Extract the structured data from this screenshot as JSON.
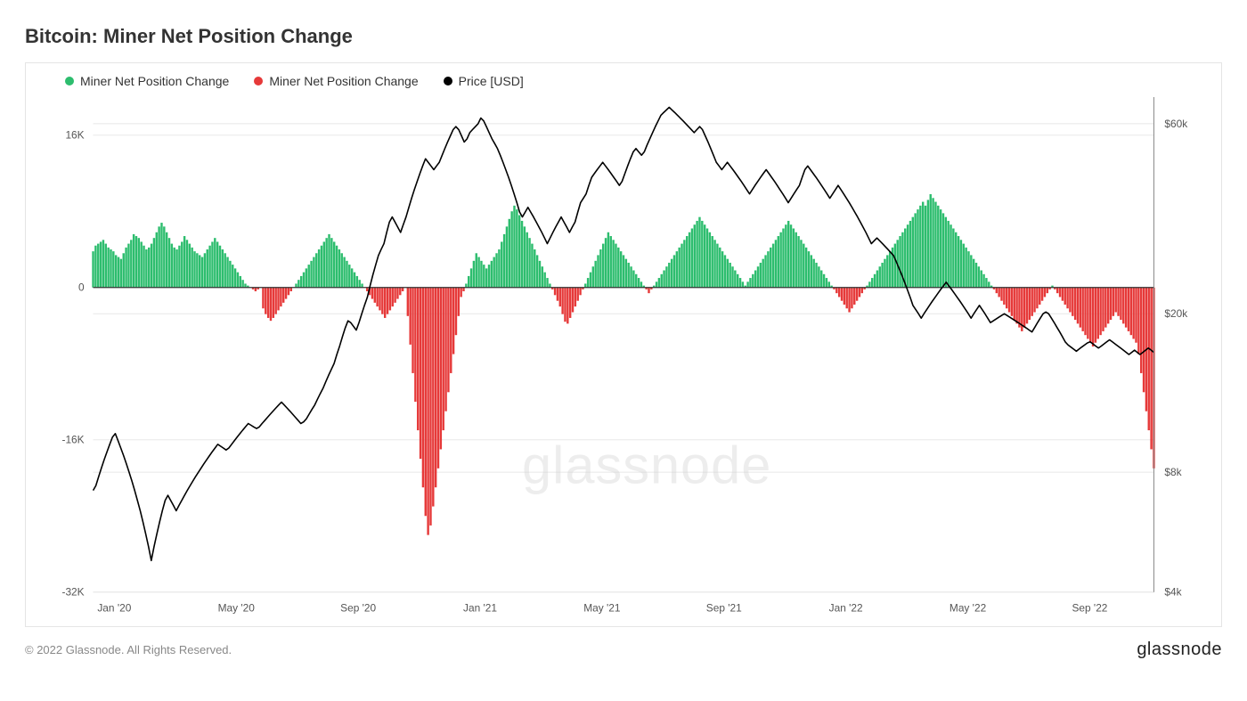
{
  "title": "Bitcoin: Miner Net Position Change",
  "copyright": "© 2022 Glassnode. All Rights Reserved.",
  "brand": "glassnode",
  "watermark": "glassnode",
  "chart": {
    "type": "combo-bar-line",
    "background_color": "#ffffff",
    "frame_border_color": "#e5e5e5",
    "plot_border_color": "#888888",
    "grid_color": "#e8e8e8",
    "zero_line_color": "#333333",
    "font_family": "sans-serif",
    "legend": [
      {
        "label": "Miner Net Position Change",
        "color": "#2dbd6e",
        "type": "dot"
      },
      {
        "label": "Miner Net Position Change",
        "color": "#e63939",
        "type": "dot"
      },
      {
        "label": "Price [USD]",
        "color": "#000000",
        "type": "dot"
      }
    ],
    "left_axis": {
      "label_color": "#555",
      "label_fontsize": 12,
      "min": -32000,
      "max": 20000,
      "ticks": [
        {
          "value": 16000,
          "label": "16K"
        },
        {
          "value": 0,
          "label": "0"
        },
        {
          "value": -16000,
          "label": "-16K"
        },
        {
          "value": -32000,
          "label": "-32K"
        }
      ]
    },
    "right_axis": {
      "label_color": "#555",
      "label_fontsize": 12,
      "scale": "log",
      "min": 4000,
      "max": 70000,
      "ticks": [
        {
          "value": 60000,
          "label": "$60k"
        },
        {
          "value": 20000,
          "label": "$20k"
        },
        {
          "value": 8000,
          "label": "$8k"
        },
        {
          "value": 4000,
          "label": "$4k"
        }
      ]
    },
    "x_axis": {
      "label_color": "#555",
      "label_fontsize": 12,
      "ticks": [
        "Jan '20",
        "May '20",
        "Sep '20",
        "Jan '21",
        "May '21",
        "Sep '21",
        "Jan '22",
        "May '22",
        "Sep '22"
      ]
    },
    "bars": {
      "positive_color": "#2dbd6e",
      "negative_color": "#e63939",
      "width": 0.85,
      "values": [
        3800,
        4400,
        4600,
        4800,
        5000,
        4600,
        4200,
        4000,
        3800,
        3400,
        3200,
        3000,
        3600,
        4200,
        4600,
        5000,
        5600,
        5400,
        5200,
        4800,
        4400,
        4000,
        4200,
        4600,
        5200,
        5800,
        6400,
        6800,
        6400,
        5800,
        5200,
        4600,
        4200,
        4000,
        4400,
        4800,
        5400,
        5000,
        4600,
        4200,
        3800,
        3600,
        3400,
        3200,
        3600,
        4000,
        4400,
        4800,
        5200,
        4800,
        4400,
        4000,
        3600,
        3200,
        2800,
        2400,
        2000,
        1600,
        1200,
        800,
        400,
        200,
        0,
        -200,
        -400,
        -200,
        0,
        -2200,
        -2800,
        -3200,
        -3500,
        -3200,
        -2800,
        -2400,
        -2000,
        -1600,
        -1200,
        -800,
        -400,
        0,
        400,
        800,
        1200,
        1600,
        2000,
        2400,
        2800,
        3200,
        3600,
        4000,
        4400,
        4800,
        5200,
        5600,
        5200,
        4800,
        4400,
        4000,
        3600,
        3200,
        2800,
        2400,
        2000,
        1600,
        1200,
        800,
        400,
        0,
        -400,
        -800,
        -1200,
        -1600,
        -2000,
        -2400,
        -2800,
        -3200,
        -2800,
        -2400,
        -2000,
        -1600,
        -1200,
        -800,
        -400,
        0,
        -3000,
        -6000,
        -9000,
        -12000,
        -15000,
        -18000,
        -21000,
        -24000,
        -26000,
        -25000,
        -23000,
        -21000,
        -19000,
        -17000,
        -15000,
        -13000,
        -11000,
        -9000,
        -7000,
        -5000,
        -3000,
        -1000,
        -400,
        400,
        1200,
        2000,
        2800,
        3600,
        3200,
        2800,
        2400,
        2000,
        2400,
        2800,
        3200,
        3600,
        4000,
        4800,
        5600,
        6400,
        7200,
        8000,
        8600,
        8200,
        7600,
        7000,
        6400,
        5800,
        5200,
        4600,
        4000,
        3400,
        2800,
        2200,
        1600,
        1000,
        400,
        -200,
        -800,
        -1400,
        -2000,
        -2800,
        -3600,
        -3800,
        -3200,
        -2600,
        -2000,
        -1400,
        -800,
        -200,
        400,
        1000,
        1600,
        2200,
        2800,
        3400,
        4000,
        4600,
        5200,
        5800,
        5400,
        5000,
        4600,
        4200,
        3800,
        3400,
        3000,
        2600,
        2200,
        1800,
        1400,
        1000,
        600,
        200,
        -200,
        -600,
        -200,
        200,
        600,
        1000,
        1400,
        1800,
        2200,
        2600,
        3000,
        3400,
        3800,
        4200,
        4600,
        5000,
        5400,
        5800,
        6200,
        6600,
        7000,
        7400,
        7000,
        6600,
        6200,
        5800,
        5400,
        5000,
        4600,
        4200,
        3800,
        3400,
        3000,
        2600,
        2200,
        1800,
        1400,
        1000,
        600,
        200,
        600,
        1000,
        1400,
        1800,
        2200,
        2600,
        3000,
        3400,
        3800,
        4200,
        4600,
        5000,
        5400,
        5800,
        6200,
        6600,
        7000,
        6600,
        6200,
        5800,
        5400,
        5000,
        4600,
        4200,
        3800,
        3400,
        3000,
        2600,
        2200,
        1800,
        1400,
        1000,
        600,
        200,
        -200,
        -600,
        -1000,
        -1400,
        -1800,
        -2200,
        -2600,
        -2200,
        -1800,
        -1400,
        -1000,
        -600,
        -200,
        200,
        600,
        1000,
        1400,
        1800,
        2200,
        2600,
        3000,
        3400,
        3800,
        4200,
        4600,
        5000,
        5400,
        5800,
        6200,
        6600,
        7000,
        7400,
        7800,
        8200,
        8600,
        9000,
        8600,
        9200,
        9800,
        9400,
        9000,
        8600,
        8200,
        7800,
        7400,
        7000,
        6600,
        6200,
        5800,
        5400,
        5000,
        4600,
        4200,
        3800,
        3400,
        3000,
        2600,
        2200,
        1800,
        1400,
        1000,
        600,
        200,
        -200,
        -600,
        -1000,
        -1400,
        -1800,
        -2200,
        -2600,
        -3000,
        -3400,
        -3800,
        -4200,
        -4600,
        -4200,
        -3800,
        -3400,
        -3000,
        -2600,
        -2200,
        -1800,
        -1400,
        -1000,
        -600,
        -200,
        200,
        -200,
        -600,
        -1000,
        -1400,
        -1800,
        -2200,
        -2600,
        -3000,
        -3400,
        -3800,
        -4200,
        -4600,
        -5000,
        -5400,
        -5800,
        -6200,
        -5800,
        -5400,
        -5000,
        -4600,
        -4200,
        -3800,
        -3400,
        -3000,
        -2600,
        -3000,
        -3400,
        -3800,
        -4200,
        -4600,
        -5000,
        -5400,
        -5800,
        -7000,
        -9000,
        -11000,
        -13000,
        -15000,
        -17000,
        -19000
      ]
    },
    "price_line": {
      "color": "#000000",
      "width": 1.6,
      "values": [
        7200,
        7400,
        7800,
        8200,
        8600,
        9000,
        9400,
        9800,
        10000,
        9600,
        9200,
        8800,
        8400,
        8000,
        7600,
        7200,
        6800,
        6400,
        6000,
        5600,
        5200,
        4800,
        5200,
        5600,
        6000,
        6400,
        6800,
        7000,
        6800,
        6600,
        6400,
        6600,
        6800,
        7000,
        7200,
        7400,
        7600,
        7800,
        8000,
        8200,
        8400,
        8600,
        8800,
        9000,
        9200,
        9400,
        9300,
        9200,
        9100,
        9200,
        9400,
        9600,
        9800,
        10000,
        10200,
        10400,
        10600,
        10500,
        10400,
        10300,
        10400,
        10600,
        10800,
        11000,
        11200,
        11400,
        11600,
        11800,
        12000,
        11800,
        11600,
        11400,
        11200,
        11000,
        10800,
        10600,
        10700,
        10900,
        11200,
        11500,
        11800,
        12200,
        12600,
        13000,
        13500,
        14000,
        14500,
        15000,
        15800,
        16600,
        17500,
        18400,
        19200,
        19000,
        18600,
        18200,
        19000,
        20000,
        21000,
        22000,
        23500,
        25000,
        26500,
        28000,
        29000,
        30000,
        32000,
        34000,
        35000,
        34000,
        33000,
        32000,
        33500,
        35000,
        37000,
        39000,
        41000,
        43000,
        45000,
        47000,
        49000,
        48000,
        47000,
        46000,
        47000,
        48000,
        50000,
        52000,
        54000,
        56000,
        58000,
        59000,
        58000,
        56000,
        54000,
        55000,
        57000,
        58000,
        59000,
        60000,
        62000,
        61000,
        59000,
        57000,
        55000,
        53500,
        52000,
        50000,
        48000,
        46000,
        44000,
        42000,
        40000,
        38000,
        36000,
        35000,
        36000,
        37000,
        36000,
        35000,
        34000,
        33000,
        32000,
        31000,
        30000,
        31000,
        32000,
        33000,
        34000,
        35000,
        34000,
        33000,
        32000,
        33000,
        34000,
        36000,
        38000,
        39000,
        40000,
        42000,
        44000,
        45000,
        46000,
        47000,
        48000,
        47000,
        46000,
        45000,
        44000,
        43000,
        42000,
        43000,
        45000,
        47000,
        49000,
        51000,
        52000,
        51000,
        50000,
        51000,
        53000,
        55000,
        57000,
        59000,
        61000,
        63000,
        64000,
        65000,
        66000,
        65000,
        64000,
        63000,
        62000,
        61000,
        60000,
        59000,
        58000,
        57000,
        58000,
        59000,
        58000,
        56000,
        54000,
        52000,
        50000,
        48000,
        47000,
        46000,
        47000,
        48000,
        47000,
        46000,
        45000,
        44000,
        43000,
        42000,
        41000,
        40000,
        41000,
        42000,
        43000,
        44000,
        45000,
        46000,
        45000,
        44000,
        43000,
        42000,
        41000,
        40000,
        39000,
        38000,
        39000,
        40000,
        41000,
        42000,
        44000,
        46000,
        47000,
        46000,
        45000,
        44000,
        43000,
        42000,
        41000,
        40000,
        39000,
        40000,
        41000,
        42000,
        41000,
        40000,
        39000,
        38000,
        37000,
        36000,
        35000,
        34000,
        33000,
        32000,
        31000,
        30000,
        30500,
        31000,
        30500,
        30000,
        29500,
        29000,
        28500,
        28000,
        27000,
        26000,
        25000,
        24000,
        23000,
        22000,
        21000,
        20500,
        20000,
        19500,
        20000,
        20500,
        21000,
        21500,
        22000,
        22500,
        23000,
        23500,
        24000,
        23500,
        23000,
        22500,
        22000,
        21500,
        21000,
        20500,
        20000,
        19500,
        20000,
        20500,
        21000,
        20500,
        20000,
        19500,
        19000,
        19200,
        19400,
        19600,
        19800,
        20000,
        19800,
        19600,
        19400,
        19200,
        19000,
        18800,
        18600,
        18400,
        18200,
        18000,
        18500,
        19000,
        19500,
        20000,
        20200,
        20000,
        19500,
        19000,
        18500,
        18000,
        17500,
        17000,
        16700,
        16500,
        16300,
        16100,
        16300,
        16500,
        16700,
        16900,
        17000,
        16800,
        16600,
        16400,
        16600,
        16800,
        17000,
        17200,
        17000,
        16800,
        16600,
        16400,
        16200,
        16000,
        15800,
        16000,
        16200,
        16000,
        15800,
        16000,
        16200,
        16400,
        16200,
        16000
      ]
    }
  }
}
